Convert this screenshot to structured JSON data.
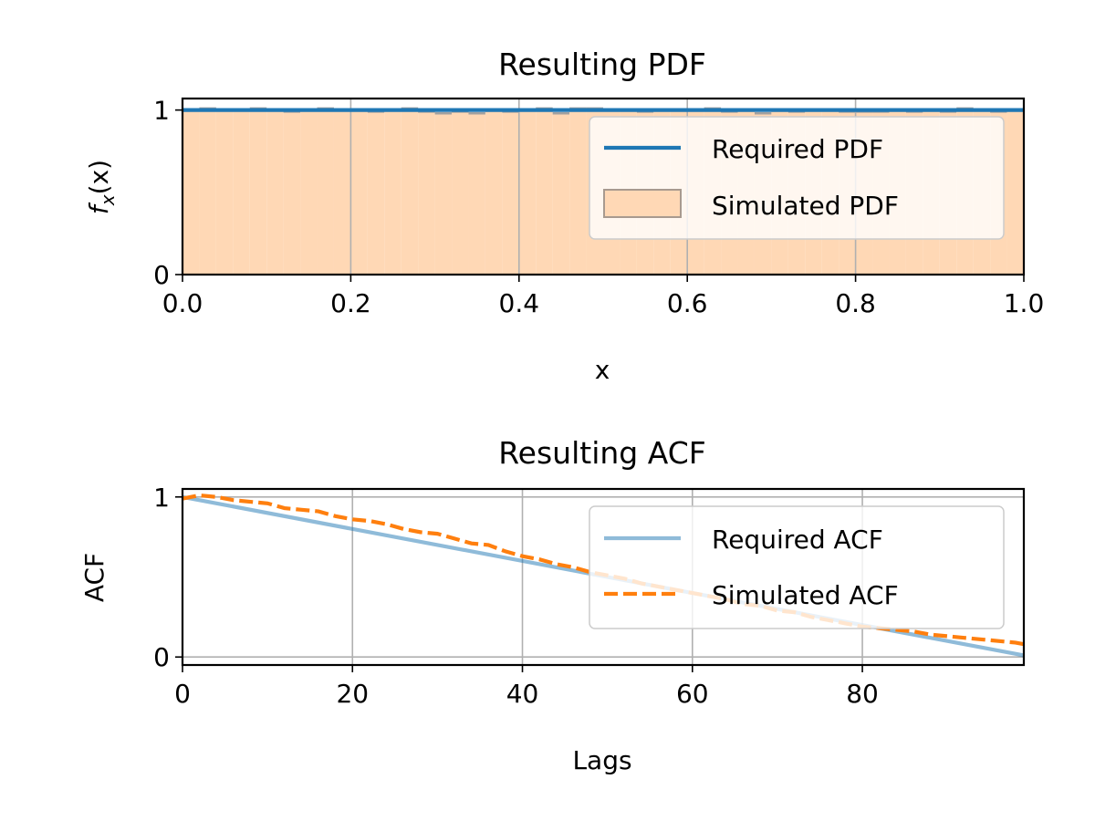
{
  "chart_data": [
    {
      "type": "histogram_line",
      "title": "Resulting PDF",
      "xlabel": "x",
      "ylabel": {
        "f": "f",
        "sub": "x",
        "arg": "(x)"
      },
      "xlim": [
        0.0,
        1.0
      ],
      "ylim": [
        0,
        1.07
      ],
      "xticks": [
        0.0,
        0.2,
        0.4,
        0.6,
        0.8,
        1.0
      ],
      "xtick_labels": [
        "0.0",
        "0.2",
        "0.4",
        "0.6",
        "0.8",
        "1.0"
      ],
      "yticks": [
        0,
        1
      ],
      "ytick_labels": [
        "0",
        "1"
      ],
      "grid": "x",
      "legend": {
        "position": "right",
        "entries": [
          "Required PDF",
          "Simulated PDF"
        ]
      },
      "series": [
        {
          "name": "Required PDF",
          "kind": "line",
          "color": "#1f77b4",
          "x": [
            0.0,
            1.0
          ],
          "y": [
            1.0,
            1.0
          ]
        },
        {
          "name": "Simulated PDF",
          "kind": "histogram",
          "color": "#ffd8b5",
          "edge_color": "#a0a0a0",
          "bin_start": 0.0,
          "bin_width": 0.02,
          "values": [
            1.0,
            1.01,
            1.0,
            1.0,
            1.01,
            1.0,
            0.99,
            1.0,
            1.01,
            1.0,
            1.0,
            0.99,
            1.0,
            1.01,
            0.99,
            0.98,
            0.99,
            0.98,
            1.0,
            0.99,
            1.0,
            1.01,
            0.98,
            1.01,
            1.01,
            1.0,
            1.0,
            0.99,
            1.0,
            1.0,
            1.0,
            1.01,
            0.99,
            1.0,
            0.98,
            1.0,
            0.99,
            1.0,
            1.0,
            0.99,
            0.99,
            0.99,
            1.0,
            0.99,
            1.0,
            0.99,
            1.01,
            1.0,
            0.99,
            1.0
          ]
        }
      ]
    },
    {
      "type": "line",
      "title": "Resulting ACF",
      "xlabel": "Lags",
      "ylabel": "ACF",
      "xlim": [
        0,
        99
      ],
      "ylim": [
        -0.05,
        1.05
      ],
      "xticks": [
        0,
        20,
        40,
        60,
        80
      ],
      "xtick_labels": [
        "0",
        "20",
        "40",
        "60",
        "80"
      ],
      "yticks": [
        0,
        1
      ],
      "ytick_labels": [
        "0",
        "1"
      ],
      "grid": "both",
      "legend": {
        "position": "upper right",
        "entries": [
          "Required ACF",
          "Simulated ACF"
        ]
      },
      "series": [
        {
          "name": "Required ACF",
          "color": "#1f77b4",
          "opacity": 0.5,
          "dash": "solid",
          "x": [
            0,
            99
          ],
          "y": [
            1.0,
            0.01
          ]
        },
        {
          "name": "Simulated ACF",
          "color": "#ff7f0e",
          "dash": "dashed",
          "x": [
            0,
            2,
            4,
            6,
            8,
            10,
            12,
            14,
            16,
            18,
            20,
            22,
            24,
            26,
            28,
            30,
            32,
            34,
            36,
            38,
            40,
            42,
            44,
            46,
            48,
            50,
            52,
            54,
            56,
            58,
            60,
            62,
            64,
            66,
            68,
            70,
            72,
            74,
            76,
            78,
            80,
            82,
            84,
            86,
            88,
            90,
            92,
            94,
            96,
            98,
            99
          ],
          "y": [
            0.99,
            1.01,
            1.0,
            0.98,
            0.97,
            0.96,
            0.93,
            0.92,
            0.91,
            0.88,
            0.86,
            0.85,
            0.83,
            0.8,
            0.78,
            0.77,
            0.74,
            0.71,
            0.7,
            0.66,
            0.63,
            0.61,
            0.58,
            0.56,
            0.53,
            0.51,
            0.49,
            0.46,
            0.44,
            0.42,
            0.4,
            0.38,
            0.36,
            0.33,
            0.32,
            0.29,
            0.28,
            0.25,
            0.23,
            0.21,
            0.19,
            0.18,
            0.17,
            0.16,
            0.14,
            0.13,
            0.12,
            0.11,
            0.1,
            0.09,
            0.08
          ]
        }
      ]
    }
  ]
}
